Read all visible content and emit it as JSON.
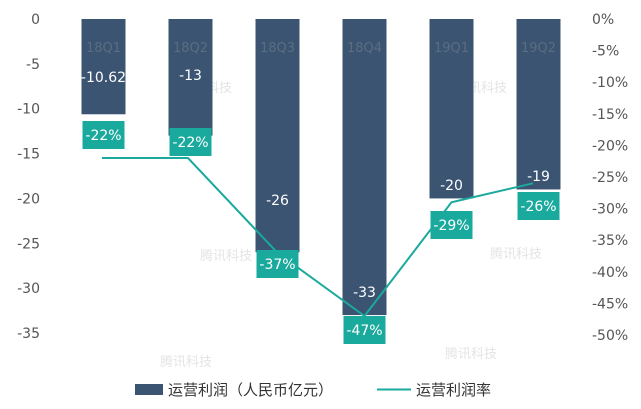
{
  "chart_data": {
    "type": "bar",
    "categories": [
      "18Q1",
      "18Q2",
      "18Q3",
      "18Q4",
      "19Q1",
      "19Q2"
    ],
    "series": [
      {
        "name": "运营利润（人民币亿元）",
        "type": "bar",
        "axis": "left",
        "values": [
          -10.62,
          -13,
          -26,
          -33,
          -20,
          -19
        ],
        "value_labels": [
          "-10.62",
          "-13",
          "-26",
          "-33",
          "-20",
          "-19"
        ]
      },
      {
        "name": "运营利润率",
        "type": "line",
        "axis": "right",
        "values": [
          -22,
          -22,
          -37,
          -47,
          -29,
          -26
        ],
        "value_labels": [
          "-22%",
          "-22%",
          "-37%",
          "-47%",
          "-29%",
          "-26%"
        ]
      }
    ],
    "ylim_left": [
      -35,
      0
    ],
    "yticks_left": [
      "0",
      "-5",
      "-10",
      "-15",
      "-20",
      "-25",
      "-30",
      "-35"
    ],
    "ylim_right": [
      -50,
      0
    ],
    "yticks_right": [
      "0%",
      "-5%",
      "-10%",
      "-15%",
      "-20%",
      "-25%",
      "-30%",
      "-35%",
      "-40%",
      "-45%",
      "-50%"
    ],
    "legend_position": "bottom",
    "grid": false,
    "colors": {
      "bar": "#3b5472",
      "line": "#1aa99d",
      "label_box": "#1aa99d"
    }
  },
  "watermark": "腾讯科技"
}
